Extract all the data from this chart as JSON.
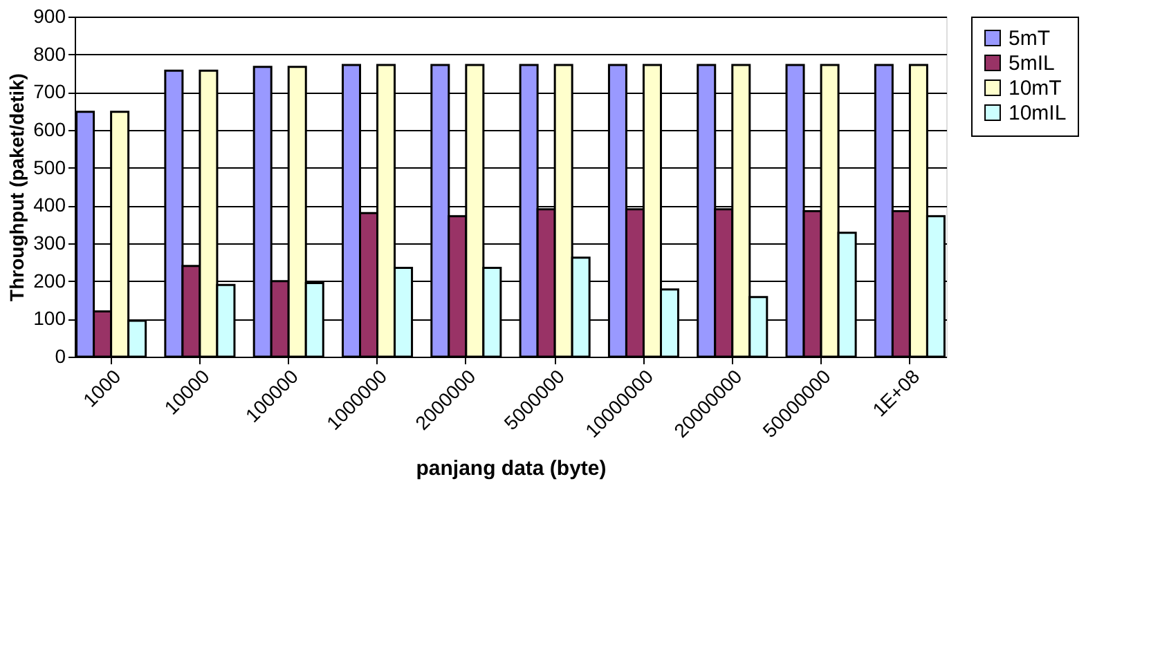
{
  "chart_data": {
    "type": "bar",
    "xlabel": "panjang data (byte)",
    "ylabel": "Throughput (paket/detik)",
    "categories": [
      "1000",
      "10000",
      "100000",
      "1000000",
      "2000000",
      "5000000",
      "10000000",
      "20000000",
      "50000000",
      "1E+08"
    ],
    "series": [
      {
        "name": "5mT",
        "color": "#9999ff",
        "values": [
          648,
          757,
          767,
          772,
          772,
          772,
          772,
          772,
          772,
          772
        ]
      },
      {
        "name": "5mIL",
        "color": "#993366",
        "values": [
          120,
          240,
          200,
          380,
          372,
          390,
          390,
          390,
          385,
          385
        ]
      },
      {
        "name": "10mT",
        "color": "#ffffcc",
        "values": [
          648,
          757,
          767,
          772,
          772,
          772,
          772,
          772,
          772,
          772
        ]
      },
      {
        "name": "10mIL",
        "color": "#ccffff",
        "values": [
          95,
          190,
          195,
          235,
          235,
          262,
          178,
          158,
          328,
          372
        ]
      }
    ],
    "ylim": [
      0,
      900
    ],
    "yticks": [
      0,
      100,
      200,
      300,
      400,
      500,
      600,
      700,
      800,
      900
    ],
    "grid": "y",
    "legend": "right"
  }
}
